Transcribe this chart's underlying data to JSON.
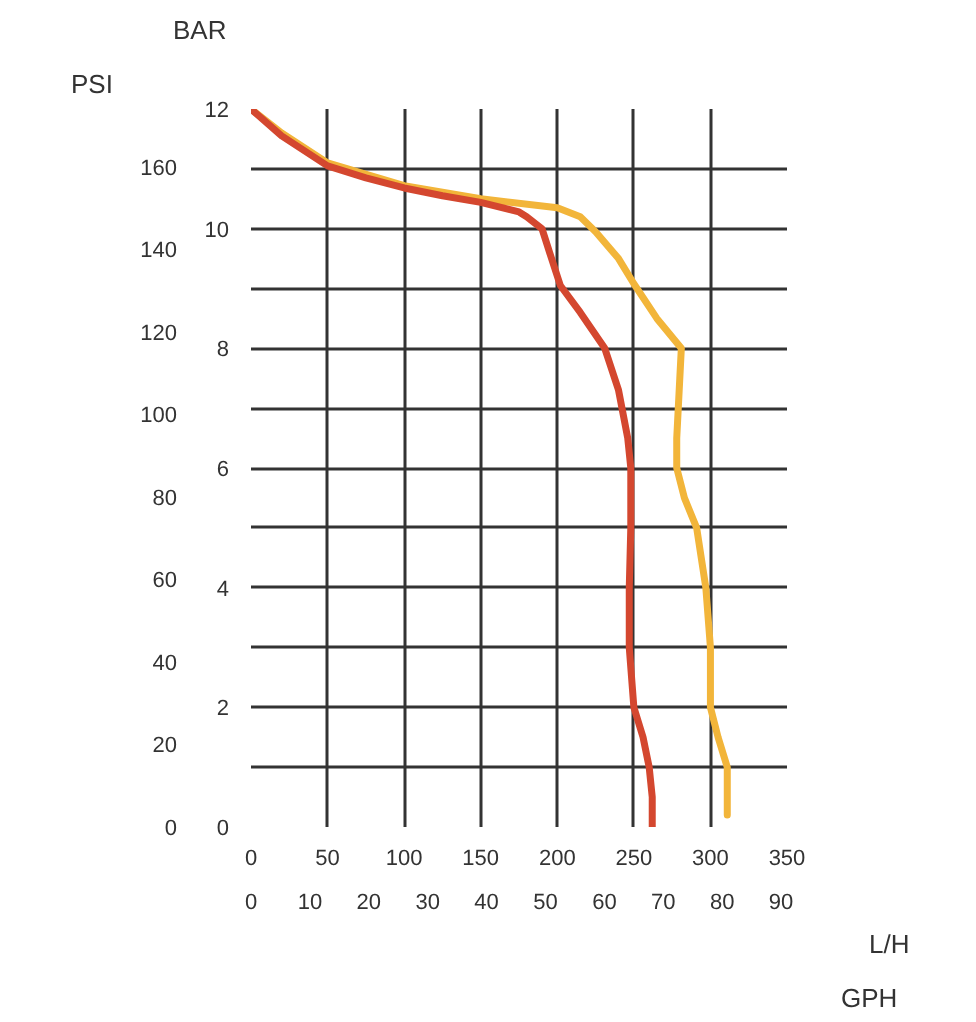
{
  "chart_data": {
    "type": "line",
    "xlabel": "L/H",
    "x2label": "GPH",
    "ylabel": "BAR",
    "y2label": "PSI",
    "xlim": [
      0,
      350
    ],
    "xticks": [
      0,
      50,
      100,
      150,
      200,
      250,
      300,
      350
    ],
    "x2lim": [
      0,
      91
    ],
    "x2ticks": [
      0,
      10,
      20,
      30,
      40,
      50,
      60,
      70,
      80,
      90
    ],
    "ylim": [
      0,
      12
    ],
    "yticks": [
      0,
      {
        "value": 1,
        "label": null
      },
      2,
      {
        "value": 3,
        "label": null
      },
      4,
      {
        "value": 5,
        "label": null
      },
      6,
      {
        "value": 7,
        "label": null
      },
      8,
      {
        "value": 9,
        "label": null
      },
      10,
      {
        "value": 11,
        "label": null
      },
      12
    ],
    "y2lim": [
      0,
      174
    ],
    "y2ticks": [
      0,
      20,
      40,
      60,
      80,
      100,
      120,
      140,
      160
    ],
    "grid": true,
    "marker": "none",
    "line_style": "solid",
    "series": [
      {
        "color": "#f2b53a",
        "x": [
          0,
          20,
          50,
          100,
          150,
          200,
          215,
          225,
          240,
          250,
          265,
          281,
          280,
          278,
          278,
          283,
          291,
          297,
          300,
          300,
          305,
          311,
          311
        ],
        "values": [
          12,
          11.6,
          11.1,
          10.72,
          10.5,
          10.35,
          10.2,
          9.95,
          9.5,
          9.08,
          8.5,
          8.0,
          7.5,
          6.5,
          6.0,
          5.5,
          5.0,
          4.0,
          3.0,
          2.0,
          1.5,
          1.0,
          0.2
        ]
      },
      {
        "color": "#d4472f",
        "x": [
          0,
          20,
          50,
          75,
          100,
          125,
          150,
          175,
          180,
          190,
          195,
          202,
          215,
          231,
          240,
          246,
          248,
          248,
          247,
          247,
          250,
          256,
          260,
          262,
          262
        ],
        "values": [
          12,
          11.55,
          11.05,
          10.85,
          10.68,
          10.55,
          10.44,
          10.28,
          10.2,
          10.0,
          9.6,
          9.05,
          8.6,
          8.0,
          7.3,
          6.5,
          6.0,
          5.0,
          4.0,
          3.0,
          2.0,
          1.5,
          1.0,
          0.5,
          0.0
        ]
      }
    ]
  }
}
